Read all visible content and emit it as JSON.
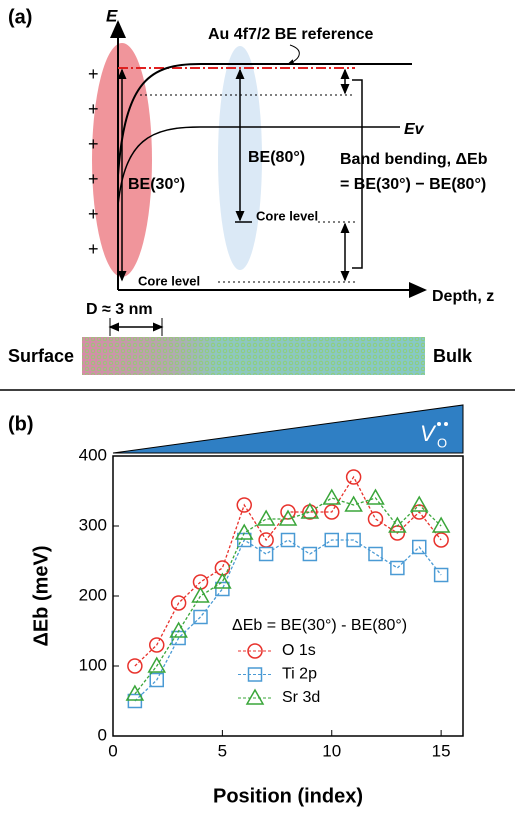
{
  "diagram": {
    "panel_a": "(a)",
    "energy_axis": "E",
    "reference": "Au 4f7/2 BE reference",
    "be30": "BE(30°)",
    "be80": "BE(80°)",
    "valence": "Ev",
    "band_bending": "Band bending, ΔEb",
    "band_bending_eq": "= BE(30°) − BE(80°)",
    "core_level_bulk": "Core level",
    "core_level_surface": "Core level",
    "depth_axis": "Depth, z",
    "depth_scale": "D ≈ 3 nm",
    "surface": "Surface",
    "bulk": "Bulk",
    "charges": [
      "+",
      "+",
      "+",
      "+",
      "+",
      "+"
    ],
    "panel_b": "(b)",
    "vacancy": "V",
    "vacancy_sub": "O"
  },
  "chart_data": {
    "type": "line",
    "xlabel": "Position (index)",
    "ylabel": "ΔEb (meV)",
    "legend_title": "ΔEb = BE(30°) - BE(80°)",
    "x": [
      1,
      2,
      3,
      4,
      5,
      6,
      7,
      8,
      9,
      10,
      11,
      12,
      13,
      14,
      15
    ],
    "series": [
      {
        "name": "O 1s",
        "color": "#e8322c",
        "marker": "circle",
        "values": [
          100,
          130,
          190,
          220,
          240,
          330,
          280,
          320,
          320,
          320,
          370,
          310,
          290,
          320,
          280
        ]
      },
      {
        "name": "Ti 2p",
        "color": "#4a9ad4",
        "marker": "square",
        "values": [
          50,
          80,
          140,
          170,
          210,
          280,
          260,
          280,
          260,
          280,
          280,
          260,
          240,
          270,
          230
        ]
      },
      {
        "name": "Sr 3d",
        "color": "#3aa63a",
        "marker": "triangle",
        "values": [
          60,
          100,
          150,
          200,
          220,
          290,
          310,
          310,
          320,
          340,
          330,
          340,
          300,
          330,
          300
        ]
      }
    ],
    "xlim": [
      0,
      16
    ],
    "ylim": [
      0,
      400
    ],
    "xticks": [
      0,
      5,
      10,
      15
    ],
    "yticks": [
      0,
      100,
      200,
      300,
      400
    ]
  }
}
